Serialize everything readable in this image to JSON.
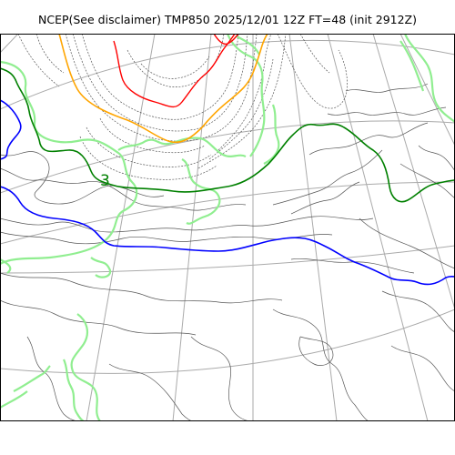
{
  "title": "NCEP(See disclaimer) TMP850 2025/12/01 12Z FT=48 (init 2912Z)",
  "contour_label": "3",
  "colors": {
    "frame": "#000000",
    "graticule": "#aaaaaa",
    "coast": "#90ee90",
    "isotherm_thin": "#555555",
    "isotherm_3": "#008000",
    "isotherm_0": "#0000ff",
    "isotherm_warm_orange": "#ffa500",
    "isotherm_warm_red": "#ff0000"
  }
}
